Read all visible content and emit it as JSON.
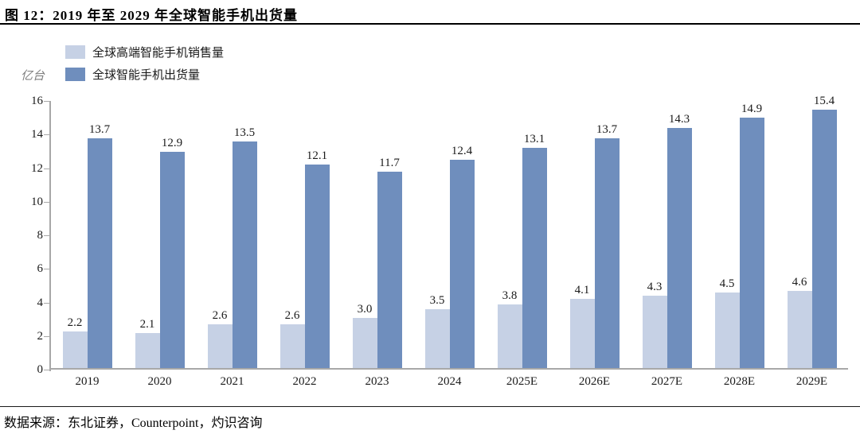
{
  "title": "图 12：2019 年至 2029 年全球智能手机出货量",
  "unit_label": "亿台",
  "source": "数据来源：东北证券，Counterpoint，灼识咨询",
  "legend": {
    "items": [
      {
        "label": "全球高端智能手机销售量",
        "color": "#c6d1e5"
      },
      {
        "label": "全球智能手机出货量",
        "color": "#6f8ebd"
      }
    ]
  },
  "chart_data": {
    "type": "bar",
    "title": "图 12：2019 年至 2029 年全球智能手机出货量",
    "categories": [
      "2019",
      "2020",
      "2021",
      "2022",
      "2023",
      "2024",
      "2025E",
      "2026E",
      "2027E",
      "2028E",
      "2029E"
    ],
    "series": [
      {
        "name": "全球高端智能手机销售量",
        "color": "#c6d1e5",
        "values": [
          2.2,
          2.1,
          2.6,
          2.6,
          3.0,
          3.5,
          3.8,
          4.1,
          4.3,
          4.5,
          4.6
        ]
      },
      {
        "name": "全球智能手机出货量",
        "color": "#6f8ebd",
        "values": [
          13.7,
          12.9,
          13.5,
          12.1,
          11.7,
          12.4,
          13.1,
          13.7,
          14.3,
          14.9,
          15.4
        ]
      }
    ],
    "xlabel": "",
    "ylabel": "亿台",
    "ylim": [
      0,
      16
    ],
    "ytick_step": 2,
    "grid": false,
    "legend_position": "top-left",
    "value_labels": true
  }
}
